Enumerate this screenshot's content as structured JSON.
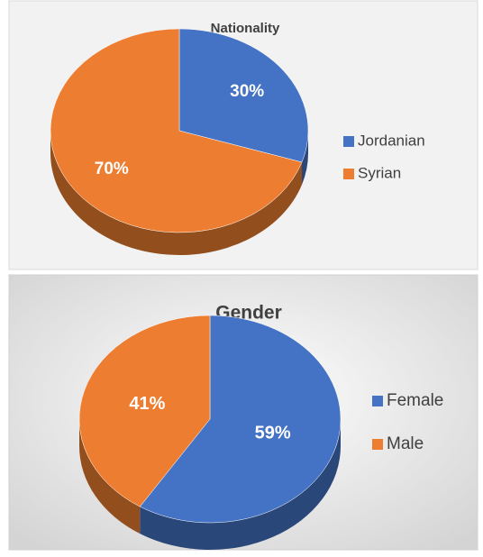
{
  "chart_data": [
    {
      "type": "pie",
      "title": "Nationality",
      "categories": [
        "Jordanian",
        "Syrian"
      ],
      "values": [
        30,
        70
      ],
      "value_labels": [
        "30%",
        "70%"
      ],
      "colors": [
        "#4472c4",
        "#ed7d31"
      ],
      "legend": "right"
    },
    {
      "type": "pie",
      "title": "Gender",
      "categories": [
        "Female",
        "Male"
      ],
      "values": [
        59,
        41
      ],
      "value_labels": [
        "59%",
        "41%"
      ],
      "colors": [
        "#4472c4",
        "#ed7d31"
      ],
      "legend": "right"
    }
  ]
}
